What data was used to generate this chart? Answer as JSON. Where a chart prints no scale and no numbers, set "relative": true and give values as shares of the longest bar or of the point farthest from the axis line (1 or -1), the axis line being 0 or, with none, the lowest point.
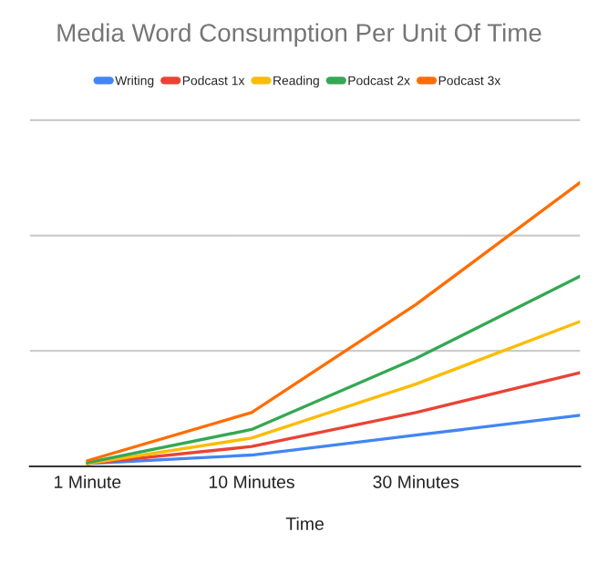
{
  "chart_data": {
    "type": "line",
    "title": "Media Word Consumption Per Unit Of Time",
    "xlabel": "Time",
    "categories": [
      "1 Minute",
      "10 Minutes",
      "30 Minutes",
      null
    ],
    "relative": true,
    "legend": "top",
    "ref_lines": [
      {
        "axis": "y",
        "value": 0.407,
        "color": "#cccccc"
      },
      {
        "axis": "y",
        "value": 0.813,
        "color": "#cccccc"
      },
      {
        "axis": "y",
        "value": 1.22,
        "color": "#cccccc"
      }
    ],
    "marker": "none",
    "line_style": "solid",
    "series": [
      {
        "name": "Writing",
        "color": "#4285f4",
        "values": [
          0.01,
          0.04,
          0.11,
          0.18
        ]
      },
      {
        "name": "Podcast 1x",
        "color": "#ea4335",
        "values": [
          0.01,
          0.07,
          0.19,
          0.33
        ]
      },
      {
        "name": "Reading",
        "color": "#fbbc04",
        "values": [
          0.01,
          0.1,
          0.29,
          0.51
        ]
      },
      {
        "name": "Podcast 2x",
        "color": "#34a853",
        "values": [
          0.013,
          0.13,
          0.38,
          0.67
        ]
      },
      {
        "name": "Podcast 3x",
        "color": "#ff6d01",
        "values": [
          0.02,
          0.19,
          0.57,
          1
        ]
      }
    ]
  }
}
